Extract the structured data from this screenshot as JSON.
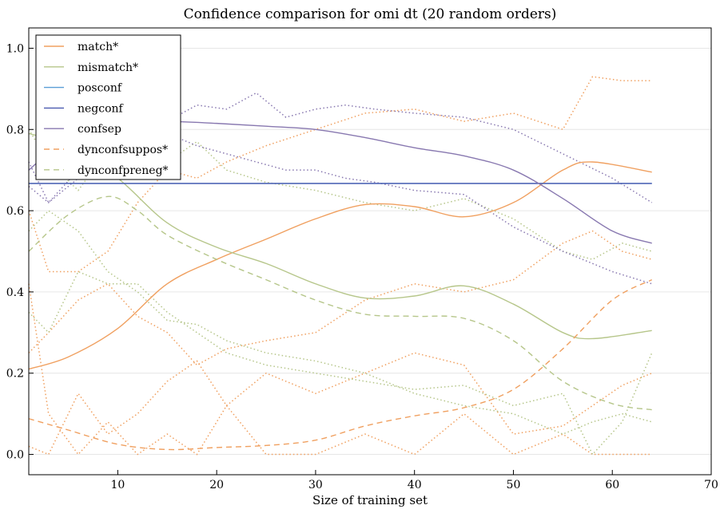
{
  "chart_data": {
    "type": "line",
    "title": "Confidence comparison for omi dt (20 random orders)",
    "xlabel": "Size of training set",
    "ylabel": "",
    "xlim": [
      1,
      70
    ],
    "ylim": [
      -0.05,
      1.05
    ],
    "xticks": [
      10,
      20,
      30,
      40,
      50,
      60,
      70
    ],
    "yticks": [
      0.0,
      0.2,
      0.4,
      0.6,
      0.8,
      1.0
    ],
    "ytick_labels": [
      "0.0",
      "0.2",
      "0.4",
      "0.6",
      "0.8",
      "1.0"
    ],
    "grid": "horizontal",
    "legend_position": "top-left",
    "series": [
      {
        "name": "match*",
        "color": "#f0a060",
        "dash": "solid",
        "x": [
          1,
          5,
          10,
          15,
          20,
          25,
          30,
          35,
          40,
          45,
          50,
          55,
          58,
          64
        ],
        "y": [
          0.21,
          0.24,
          0.31,
          0.42,
          0.48,
          0.53,
          0.58,
          0.615,
          0.61,
          0.585,
          0.62,
          0.7,
          0.72,
          0.695
        ]
      },
      {
        "name": "mismatch*",
        "color": "#b6c68a",
        "dash": "solid",
        "x": [
          1,
          5,
          10,
          15,
          20,
          25,
          30,
          35,
          40,
          45,
          50,
          55,
          58,
          64
        ],
        "y": [
          0.79,
          0.76,
          0.68,
          0.57,
          0.51,
          0.47,
          0.42,
          0.385,
          0.39,
          0.415,
          0.37,
          0.3,
          0.285,
          0.305
        ]
      },
      {
        "name": "posconf",
        "color": "#5a9ed6",
        "dash": "solid",
        "x": [
          1,
          64
        ],
        "y": [
          0.667,
          0.667
        ]
      },
      {
        "name": "negconf",
        "color": "#4a5ab0",
        "dash": "solid",
        "x": [
          1,
          64
        ],
        "y": [
          0.667,
          0.667
        ]
      },
      {
        "name": "confsep",
        "color": "#8878b0",
        "dash": "solid",
        "x": [
          1,
          5,
          10,
          15,
          20,
          25,
          30,
          35,
          40,
          45,
          50,
          55,
          60,
          64
        ],
        "y": [
          0.7,
          0.78,
          0.82,
          0.82,
          0.815,
          0.808,
          0.8,
          0.78,
          0.755,
          0.735,
          0.7,
          0.63,
          0.55,
          0.52
        ]
      },
      {
        "name": "dynconfsuppos*",
        "color": "#f0a060",
        "dash": "dashed",
        "x": [
          1,
          5,
          10,
          15,
          20,
          25,
          30,
          35,
          40,
          45,
          50,
          55,
          60,
          64
        ],
        "y": [
          0.088,
          0.06,
          0.025,
          0.012,
          0.017,
          0.022,
          0.035,
          0.07,
          0.095,
          0.115,
          0.16,
          0.26,
          0.38,
          0.43
        ]
      },
      {
        "name": "dynconfpreneg*",
        "color": "#b6c68a",
        "dash": "dashed",
        "x": [
          1,
          5,
          9,
          12,
          15,
          20,
          25,
          30,
          35,
          40,
          45,
          50,
          55,
          60,
          64
        ],
        "y": [
          0.5,
          0.59,
          0.635,
          0.6,
          0.54,
          0.48,
          0.43,
          0.38,
          0.345,
          0.34,
          0.335,
          0.28,
          0.18,
          0.125,
          0.11
        ]
      }
    ],
    "dotted_series": [
      {
        "color": "#f0a060",
        "x": [
          1,
          3,
          6,
          9,
          12,
          15,
          18,
          21,
          25,
          30,
          35,
          40,
          45,
          50,
          55,
          58,
          61,
          64
        ],
        "y": [
          0.6,
          0.45,
          0.45,
          0.5,
          0.62,
          0.7,
          0.68,
          0.72,
          0.76,
          0.8,
          0.84,
          0.85,
          0.82,
          0.84,
          0.8,
          0.93,
          0.92,
          0.92
        ]
      },
      {
        "color": "#f0a060",
        "x": [
          1,
          3,
          6,
          9,
          12,
          15,
          18,
          21,
          25,
          30,
          35,
          40,
          45,
          50,
          55,
          58,
          61,
          64
        ],
        "y": [
          0.25,
          0.3,
          0.38,
          0.42,
          0.34,
          0.3,
          0.22,
          0.26,
          0.28,
          0.3,
          0.38,
          0.42,
          0.4,
          0.43,
          0.52,
          0.55,
          0.5,
          0.48
        ]
      },
      {
        "color": "#f0a060",
        "x": [
          1,
          3,
          6,
          9,
          12,
          15,
          18,
          21,
          25,
          30,
          35,
          40,
          45,
          50,
          55,
          58,
          61,
          64
        ],
        "y": [
          0.02,
          0.0,
          0.15,
          0.05,
          0.1,
          0.18,
          0.23,
          0.12,
          0.2,
          0.15,
          0.2,
          0.25,
          0.22,
          0.05,
          0.07,
          0.12,
          0.17,
          0.2
        ]
      },
      {
        "color": "#f0a060",
        "x": [
          1,
          3,
          6,
          9,
          12,
          15,
          18,
          21,
          25,
          30,
          35,
          40,
          45,
          50,
          55,
          58,
          61,
          64
        ],
        "y": [
          0.42,
          0.1,
          0.0,
          0.08,
          0.0,
          0.05,
          0.0,
          0.12,
          0.0,
          0.0,
          0.05,
          0.0,
          0.1,
          0.0,
          0.05,
          0.0,
          0.0,
          0.0
        ]
      },
      {
        "color": "#b6c68a",
        "x": [
          1,
          3,
          6,
          9,
          12,
          15,
          18,
          21,
          25,
          30,
          35,
          40,
          45,
          50,
          55,
          58,
          61,
          64
        ],
        "y": [
          0.8,
          0.72,
          0.65,
          0.75,
          0.7,
          0.72,
          0.77,
          0.7,
          0.67,
          0.65,
          0.62,
          0.6,
          0.63,
          0.58,
          0.5,
          0.48,
          0.52,
          0.5
        ]
      },
      {
        "color": "#b6c68a",
        "x": [
          1,
          3,
          6,
          9,
          12,
          15,
          18,
          21,
          25,
          30,
          35,
          40,
          45,
          50,
          55,
          58,
          61,
          64
        ],
        "y": [
          0.35,
          0.3,
          0.45,
          0.42,
          0.42,
          0.35,
          0.3,
          0.25,
          0.22,
          0.2,
          0.18,
          0.16,
          0.17,
          0.12,
          0.15,
          0.0,
          0.08,
          0.25
        ]
      },
      {
        "color": "#b6c68a",
        "x": [
          1,
          3,
          6,
          9,
          12,
          15,
          18,
          21,
          25,
          30,
          35,
          40,
          45,
          50,
          55,
          58,
          61,
          64
        ],
        "y": [
          0.55,
          0.6,
          0.55,
          0.45,
          0.4,
          0.33,
          0.32,
          0.28,
          0.25,
          0.23,
          0.2,
          0.15,
          0.12,
          0.1,
          0.05,
          0.08,
          0.1,
          0.08
        ]
      },
      {
        "color": "#8878b0",
        "x": [
          1,
          3,
          6,
          9,
          12,
          15,
          18,
          21,
          24,
          27,
          30,
          33,
          36,
          40,
          45,
          50,
          55,
          60,
          64
        ],
        "y": [
          0.72,
          0.62,
          0.7,
          0.76,
          0.8,
          0.82,
          0.86,
          0.85,
          0.89,
          0.83,
          0.85,
          0.86,
          0.85,
          0.84,
          0.83,
          0.8,
          0.74,
          0.68,
          0.62
        ]
      },
      {
        "color": "#8878b0",
        "x": [
          1,
          3,
          6,
          9,
          12,
          15,
          18,
          21,
          24,
          27,
          30,
          33,
          36,
          40,
          45,
          50,
          55,
          60,
          64
        ],
        "y": [
          0.66,
          0.62,
          0.68,
          0.72,
          0.76,
          0.79,
          0.76,
          0.74,
          0.72,
          0.7,
          0.7,
          0.68,
          0.67,
          0.65,
          0.64,
          0.56,
          0.5,
          0.45,
          0.42
        ]
      }
    ]
  }
}
